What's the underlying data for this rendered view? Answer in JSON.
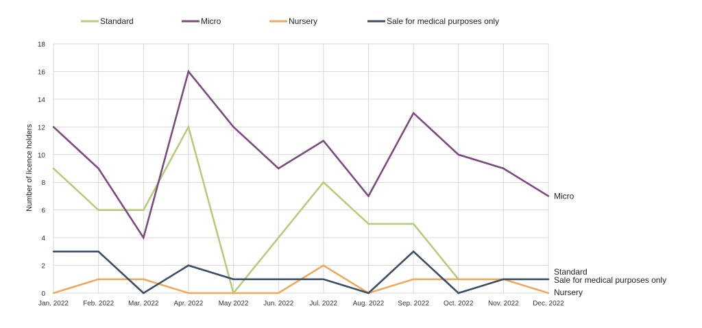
{
  "chart_data": {
    "type": "line",
    "title": "",
    "xlabel": "",
    "ylabel": "Number of licence holders",
    "ylim": [
      0,
      18
    ],
    "y_ticks": [
      "0",
      "2",
      "4",
      "6",
      "8",
      "10",
      "12",
      "14",
      "16",
      "18"
    ],
    "grid": true,
    "legend_position": "top",
    "categories": [
      "Jan. 2022",
      "Feb. 2022",
      "Mar. 2022",
      "Apr. 2022",
      "May 2022",
      "Jun. 2022",
      "Jul. 2022",
      "Aug. 2022",
      "Sep. 2022",
      "Oct. 2022",
      "Nov. 2022",
      "Dec. 2022"
    ],
    "series": [
      {
        "name": "Standard",
        "color": "#b5cc7a",
        "values": [
          9,
          6,
          6,
          12,
          0,
          4,
          8,
          5,
          5,
          1,
          1,
          1
        ]
      },
      {
        "name": "Micro",
        "color": "#7b4a7f",
        "values": [
          12,
          9,
          4,
          16,
          12,
          9,
          11,
          7,
          13,
          10,
          9,
          7
        ]
      },
      {
        "name": "Nursery",
        "color": "#f0a85a",
        "values": [
          0,
          1,
          1,
          0,
          0,
          0,
          2,
          0,
          1,
          1,
          1,
          0
        ]
      },
      {
        "name": "Sale for medical purposes only",
        "color": "#3a4d66",
        "values": [
          3,
          3,
          0,
          2,
          1,
          1,
          1,
          0,
          3,
          0,
          1,
          1
        ]
      }
    ],
    "end_labels": [
      "Micro",
      "Standard",
      "Sale for medical purposes only",
      "Nursery"
    ]
  }
}
